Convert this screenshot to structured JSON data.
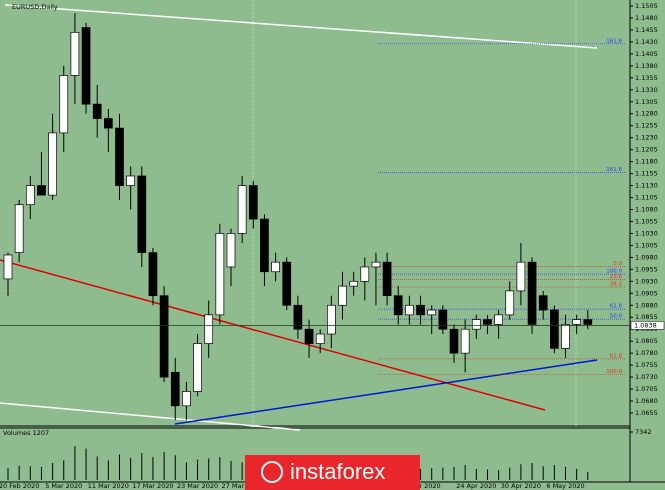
{
  "chart_data": {
    "type": "candlestick",
    "title": "EURUSD,Daily",
    "categories": [
      null,
      "20 Feb 2020",
      null,
      null,
      null,
      "5 Mar 2020",
      null,
      null,
      null,
      "11 Mar 2020",
      null,
      null,
      null,
      "17 Mar 2020",
      null,
      null,
      null,
      "23 Mar 2020",
      null,
      null,
      null,
      "27 Mar 2020",
      null,
      null,
      null,
      null,
      null,
      null,
      null,
      null,
      null,
      null,
      null,
      null,
      null,
      null,
      null,
      "14 Apr 2020",
      null,
      null,
      null,
      null,
      "24 Apr 2020",
      null,
      null,
      null,
      "30 Apr 2020",
      null,
      null,
      null,
      "6 May 2020",
      null,
      null
    ],
    "open": [
      1.0935,
      1.099,
      1.109,
      1.113,
      1.111,
      1.124,
      1.136,
      1.146,
      1.13,
      1.127,
      1.125,
      1.113,
      1.115,
      1.099,
      1.09,
      1.074,
      1.067,
      1.07,
      1.08,
      1.086,
      1.096,
      1.103,
      1.113,
      1.106,
      1.095,
      1.097,
      1.088,
      1.083,
      1.08,
      1.082,
      1.088,
      1.092,
      1.093,
      1.096,
      1.097,
      1.09,
      1.086,
      1.088,
      1.086,
      1.087,
      1.083,
      1.078,
      1.083,
      1.085,
      1.084,
      1.086,
      1.091,
      1.097,
      1.09,
      1.087,
      1.079,
      1.084,
      1.085
    ],
    "high": [
      1.099,
      1.11,
      1.115,
      1.12,
      1.128,
      1.138,
      1.149,
      1.147,
      1.134,
      1.129,
      1.128,
      1.117,
      1.117,
      1.1,
      1.092,
      1.077,
      1.072,
      1.082,
      1.089,
      1.105,
      1.104,
      1.115,
      1.114,
      1.107,
      1.099,
      1.098,
      1.09,
      1.085,
      1.083,
      1.09,
      1.095,
      1.095,
      1.098,
      1.099,
      1.099,
      1.092,
      1.09,
      1.09,
      1.088,
      1.088,
      1.084,
      1.085,
      1.086,
      1.086,
      1.087,
      1.093,
      1.101,
      1.098,
      1.091,
      1.088,
      1.086,
      1.086,
      1.087
    ],
    "low": [
      1.09,
      1.097,
      1.106,
      1.111,
      1.11,
      1.12,
      1.13,
      1.128,
      1.123,
      1.12,
      1.11,
      1.108,
      1.096,
      1.088,
      1.072,
      1.064,
      1.064,
      1.069,
      1.077,
      1.084,
      1.092,
      1.101,
      1.104,
      1.092,
      1.093,
      1.087,
      1.081,
      1.077,
      1.078,
      1.079,
      1.085,
      1.09,
      1.089,
      1.088,
      1.088,
      1.084,
      1.084,
      1.084,
      1.082,
      1.082,
      1.076,
      1.074,
      1.081,
      1.082,
      1.081,
      1.085,
      1.088,
      1.082,
      1.085,
      1.078,
      1.077,
      1.082,
      1.083
    ],
    "close": [
      1.0985,
      1.109,
      1.113,
      1.111,
      1.124,
      1.136,
      1.145,
      1.13,
      1.127,
      1.125,
      1.113,
      1.115,
      1.099,
      1.09,
      1.073,
      1.067,
      1.07,
      1.08,
      1.086,
      1.103,
      1.103,
      1.113,
      1.106,
      1.095,
      1.097,
      1.088,
      1.083,
      1.08,
      1.082,
      1.088,
      1.092,
      1.093,
      1.096,
      1.097,
      1.09,
      1.086,
      1.088,
      1.086,
      1.087,
      1.083,
      1.078,
      1.083,
      1.085,
      1.084,
      1.086,
      1.091,
      1.097,
      1.084,
      1.087,
      1.079,
      1.084,
      1.085,
      1.084
    ],
    "ylim": [
      1.0655,
      1.1505
    ],
    "yticks": [
      1.1505,
      {
        "value": 1.148,
        "label": "1.1480"
      },
      1.1455,
      {
        "value": 1.143,
        "label": "1.1430"
      },
      1.1405,
      {
        "value": 1.138,
        "label": "1.1380"
      },
      1.1355,
      {
        "value": 1.133,
        "label": "1.1330"
      },
      1.1305,
      {
        "value": 1.128,
        "label": "1.1280"
      },
      1.1255,
      {
        "value": 1.123,
        "label": "1.1230"
      },
      1.1205,
      {
        "value": 1.118,
        "label": "1.1180"
      },
      1.1155,
      {
        "value": 1.113,
        "label": "1.1130"
      },
      1.1105,
      {
        "value": 1.108,
        "label": "1.1080"
      },
      1.1055,
      {
        "value": 1.103,
        "label": "1.1030"
      },
      1.1005,
      {
        "value": 1.098,
        "label": "1.0980"
      },
      1.0955,
      {
        "value": 1.093,
        "label": "1.0930"
      },
      1.0905,
      {
        "value": 1.088,
        "label": "1.0880"
      },
      1.0855,
      {
        "value": 1.083,
        "label": "1.0830"
      },
      1.0805,
      {
        "value": 1.078,
        "label": "1.0780"
      },
      1.0755,
      {
        "value": 1.073,
        "label": "1.0730"
      },
      1.0705,
      {
        "value": 1.068,
        "label": "1.0680"
      },
      1.0655
    ],
    "current_price": 1.0838,
    "levels": [
      {
        "label": "161.8",
        "value": 1.1426,
        "color": "#2a3cff"
      },
      {
        "label": "161.8",
        "value": 1.1157,
        "color": "#2a3cff"
      },
      {
        "label": "0.0",
        "value": 1.0961,
        "color": "#e03020"
      },
      {
        "label": "100.0",
        "value": 1.0945,
        "color": "#2a3cff"
      },
      {
        "label": "23.6",
        "value": 1.0934,
        "color": "#e03020"
      },
      {
        "label": "38.2",
        "value": 1.0918,
        "color": "#e03020"
      },
      {
        "label": "61.8",
        "value": 1.0872,
        "color": "#2a3cff"
      },
      {
        "label": "50.0",
        "value": 1.0851,
        "color": "#2a3cff"
      },
      {
        "label": "61.8",
        "value": 1.0768,
        "color": "#e03020"
      },
      {
        "label": "100.0",
        "value": 1.0735,
        "color": "#e03020"
      }
    ],
    "volume": {
      "label": "Volumes 1207",
      "values": [
        1800,
        2200,
        2100,
        2000,
        2600,
        3000,
        5200,
        4800,
        3600,
        3000,
        3900,
        3400,
        4100,
        3500,
        4300,
        3800,
        2700,
        3100,
        3300,
        3500,
        2900,
        2700,
        2400,
        2600,
        2300,
        2500,
        2200,
        2000,
        1900,
        2100,
        2300,
        1800,
        1700,
        2000,
        2200,
        1900,
        1600,
        1700,
        1800,
        1900,
        2000,
        2300,
        1700,
        1600,
        1500,
        1900,
        2400,
        2600,
        2100,
        2300,
        2000,
        1700,
        1200
      ],
      "ylim": [
        0,
        7342
      ],
      "yticks": [
        7342
      ]
    },
    "watermark": "instaforex"
  }
}
